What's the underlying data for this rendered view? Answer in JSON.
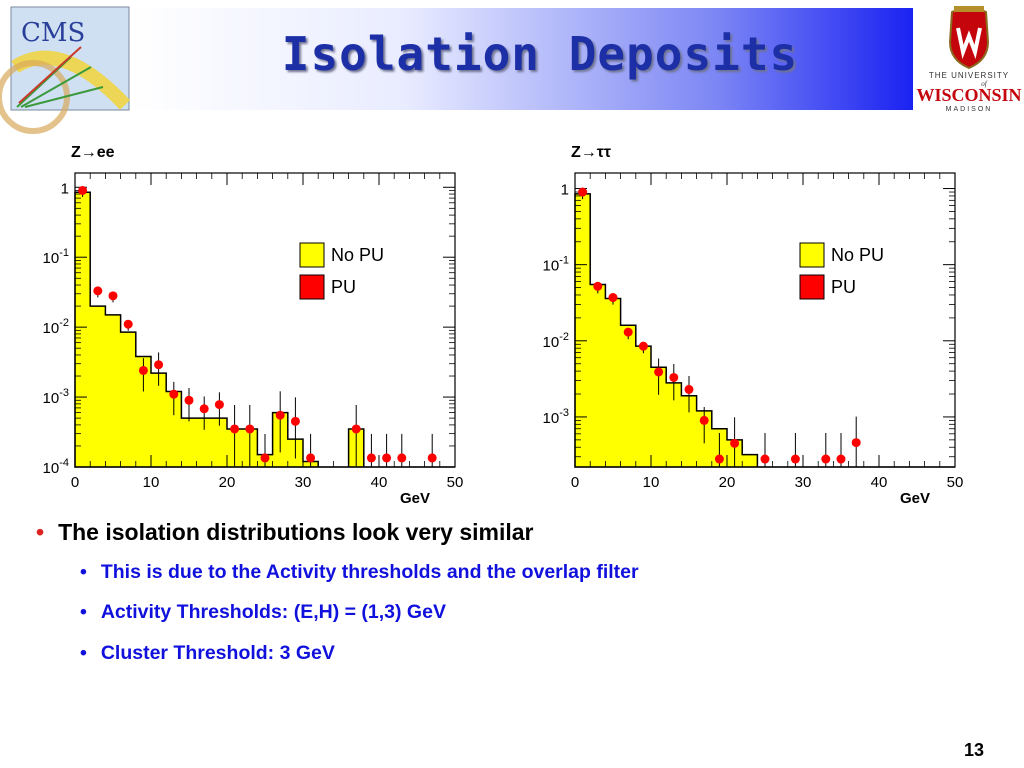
{
  "header": {
    "title": "Isolation Deposits",
    "cms_logo_text": "CMS",
    "uw_logo": {
      "line1": "THE UNIVERSITY",
      "line2": "of",
      "line3": "WISCONSIN",
      "line4": "MADISON"
    }
  },
  "chart_data": [
    {
      "type": "bar",
      "title": "Z→ee",
      "xlabel": "GeV",
      "ylabel": "",
      "xlim": [
        0,
        50
      ],
      "ylim": [
        0.0001,
        1.6
      ],
      "y_scale": "log",
      "x_ticks": [
        "0",
        "10",
        "20",
        "30",
        "40",
        "50"
      ],
      "y_ticks": [
        {
          "value": 1,
          "base": "1",
          "exp": ""
        },
        {
          "value": 0.1,
          "base": "10",
          "exp": "-1"
        },
        {
          "value": 0.01,
          "base": "10",
          "exp": "-2"
        },
        {
          "value": 0.001,
          "base": "10",
          "exp": "-3"
        },
        {
          "value": 0.0001,
          "base": "10",
          "exp": "-4"
        }
      ],
      "legend": {
        "placement": "top-right",
        "entries": [
          "No PU",
          "PU"
        ]
      },
      "series": [
        {
          "name": "No PU",
          "style": "filled-histogram",
          "color": "#ffff00",
          "bin_edges": [
            0,
            2,
            4,
            6,
            8,
            10,
            12,
            14,
            16,
            18,
            20,
            22,
            24,
            26,
            28,
            30,
            32,
            34,
            36,
            38,
            40,
            42,
            44,
            46,
            48,
            50
          ],
          "values": [
            0.85,
            0.02,
            0.015,
            0.0085,
            0.0038,
            0.0022,
            0.0012,
            0.0005,
            0.0005,
            0.0005,
            0.00035,
            0.00035,
            0.00015,
            0.0006,
            0.00025,
            0.00012,
            0.0001,
            0.0001,
            0.00035,
            0.0001,
            0.0001,
            0.0001,
            0.0001,
            0.0001,
            0.0001
          ]
        },
        {
          "name": "PU",
          "style": "points",
          "color": "#ff0000",
          "x": [
            1,
            3,
            5,
            7,
            9,
            11,
            13,
            15,
            17,
            19,
            21,
            23,
            25,
            27,
            29,
            31,
            37,
            39,
            41,
            43,
            47
          ],
          "values": [
            0.9,
            0.033,
            0.028,
            0.011,
            0.0024,
            0.0029,
            0.0011,
            0.0009,
            0.00068,
            0.00078,
            0.00035,
            0.00035,
            0.000135,
            0.00055,
            0.00045,
            0.000135,
            0.00035,
            0.000135,
            0.000135,
            0.000135,
            0.000135
          ]
        }
      ]
    },
    {
      "type": "bar",
      "title": "Z→ττ",
      "xlabel": "GeV",
      "ylabel": "",
      "xlim": [
        0,
        50
      ],
      "ylim": [
        0.00022,
        1.6
      ],
      "y_scale": "log",
      "x_ticks": [
        "0",
        "10",
        "20",
        "30",
        "40",
        "50"
      ],
      "y_ticks": [
        {
          "value": 1,
          "base": "1",
          "exp": ""
        },
        {
          "value": 0.1,
          "base": "10",
          "exp": "-1"
        },
        {
          "value": 0.01,
          "base": "10",
          "exp": "-2"
        },
        {
          "value": 0.001,
          "base": "10",
          "exp": "-3"
        }
      ],
      "legend": {
        "placement": "top-right",
        "entries": [
          "No PU",
          "PU"
        ]
      },
      "series": [
        {
          "name": "No PU",
          "style": "filled-histogram",
          "color": "#ffff00",
          "bin_edges": [
            0,
            2,
            4,
            6,
            8,
            10,
            12,
            14,
            16,
            18,
            20,
            22,
            24,
            26,
            28,
            30,
            32,
            34,
            36,
            38,
            40,
            42,
            44,
            46,
            48,
            50
          ],
          "values": [
            0.85,
            0.055,
            0.036,
            0.016,
            0.0085,
            0.0045,
            0.0028,
            0.0019,
            0.0012,
            0.0007,
            0.0005,
            0.00032,
            0.00022,
            0.00022,
            0.00022,
            0.00022,
            0.00022,
            0.00022,
            0.00022,
            0.00022,
            0.00022,
            0.00022,
            0.00022,
            0.00022,
            0.00022
          ]
        },
        {
          "name": "PU",
          "style": "points",
          "color": "#ff0000",
          "x": [
            1,
            3,
            5,
            7,
            9,
            11,
            13,
            15,
            17,
            19,
            21,
            25,
            29,
            33,
            35,
            37
          ],
          "values": [
            0.9,
            0.052,
            0.037,
            0.013,
            0.0085,
            0.0039,
            0.0033,
            0.0023,
            0.0009,
            0.00028,
            0.00045,
            0.00028,
            0.00028,
            0.00028,
            0.00028,
            0.00046
          ]
        }
      ]
    }
  ],
  "bullets": {
    "main": "The isolation distributions look very similar",
    "subs": [
      "This is due to the Activity thresholds and the overlap filter",
      "Activity Thresholds: (E,H) = (1,3) GeV",
      "Cluster Threshold: 3 GeV"
    ]
  },
  "page_number": "13",
  "colors": {
    "title": "#1c2fa6",
    "sub_bullet_text": "#1111dd",
    "bullet_marker": "#dd2222",
    "no_pu_fill": "#ffff00",
    "pu_marker": "#ff0000",
    "uw_red": "#c5050c"
  }
}
